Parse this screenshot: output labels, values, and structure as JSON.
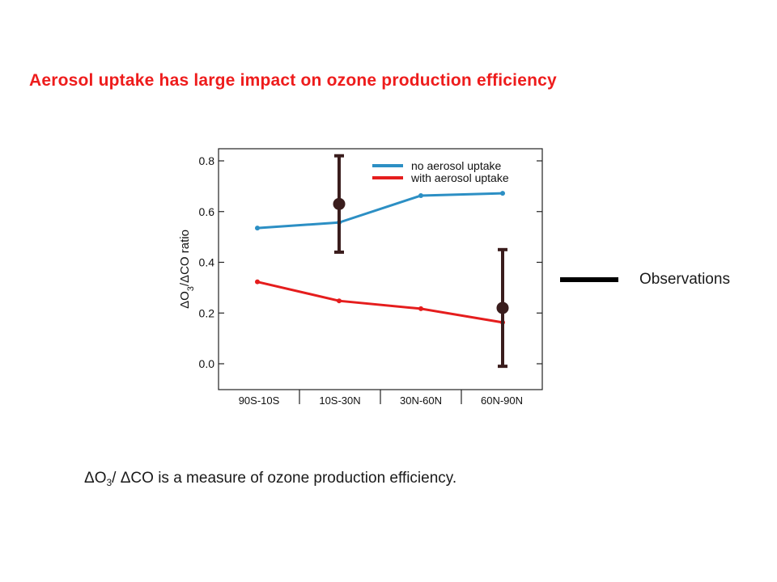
{
  "title": "Aerosol uptake has large impact on ozone production efficiency",
  "colors": {
    "title": "#ee1c1c",
    "no_uptake": "#2c8fc4",
    "with_uptake": "#e51d1d",
    "observation": "#3a1d1d",
    "observation_legend": "#000000"
  },
  "side_legend": {
    "label": "Observations"
  },
  "caption": {
    "delta": "ΔO",
    "subscript": "3",
    "rest": "/ ΔCO is a measure of ozone production efficiency."
  },
  "chart_data": {
    "type": "line",
    "categories": [
      "90S-10S",
      "10S-30N",
      "30N-60N",
      "60N-90N"
    ],
    "ylabel": "ΔO3/ΔCO ratio",
    "xlabel": "",
    "ylim": [
      -0.1,
      0.85
    ],
    "yticks": [
      0.0,
      0.2,
      0.4,
      0.6,
      0.8
    ],
    "ytick_labels": [
      "0.0",
      "0.2",
      "0.4",
      "0.6",
      "0.8"
    ],
    "grid": false,
    "legend": "top-right",
    "series": [
      {
        "name": "no aerosol uptake",
        "color": "#2c8fc4",
        "values": [
          0.535,
          0.557,
          0.663,
          0.672
        ]
      },
      {
        "name": "with aerosol uptake",
        "color": "#e51d1d",
        "values": [
          0.323,
          0.248,
          0.217,
          0.163
        ]
      }
    ],
    "observations": [
      {
        "category": "10S-30N",
        "value": 0.63,
        "low": 0.44,
        "high": 0.82
      },
      {
        "category": "60N-90N",
        "value": 0.22,
        "low": -0.01,
        "high": 0.45
      }
    ]
  }
}
